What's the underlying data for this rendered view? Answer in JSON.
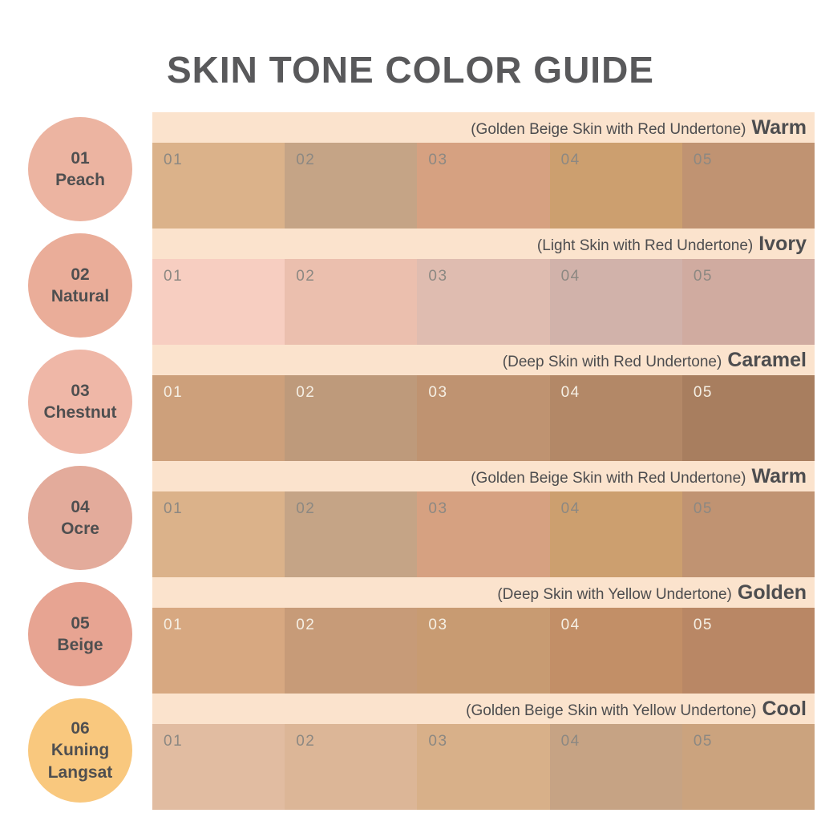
{
  "title": "SKIN TONE COLOR GUIDE",
  "colors": {
    "page_background": "#FFFFFF",
    "band_bg": "#FBE3CD",
    "title_text": "#59595B",
    "header_text": "#4D4D4F",
    "circle_text": "#4F4F50",
    "label_gray": "#8C8882",
    "label_light": "#F5EFE4"
  },
  "legend": {
    "items": [
      {
        "number": "01",
        "name": "Peach",
        "color": "#ECB4A1"
      },
      {
        "number": "02",
        "name": "Natural",
        "color": "#EAAD99"
      },
      {
        "number": "03",
        "name": "Chestnut",
        "color": "#EFB7A7"
      },
      {
        "number": "04",
        "name": "Ocre",
        "color": "#E3AB9B"
      },
      {
        "number": "05",
        "name": "Beige",
        "color": "#E7A492"
      },
      {
        "number": "06",
        "name": "Kuning Langsat",
        "color": "#F9C87E"
      }
    ]
  },
  "rows": [
    {
      "descriptor": "(Golden Beige Skin with Red Undertone)",
      "name": "Warm",
      "label_color": "#8C8882",
      "swatches": [
        {
          "label": "01",
          "color": "#DBB28A"
        },
        {
          "label": "02",
          "color": "#C5A486"
        },
        {
          "label": "03",
          "color": "#D6A181"
        },
        {
          "label": "04",
          "color": "#CC9F6F"
        },
        {
          "label": "05",
          "color": "#C09372"
        }
      ]
    },
    {
      "descriptor": "(Light Skin with Red Undertone)",
      "name": "Ivory",
      "label_color": "#8C8882",
      "swatches": [
        {
          "label": "01",
          "color": "#F7CEC1"
        },
        {
          "label": "02",
          "color": "#EBBFAE"
        },
        {
          "label": "03",
          "color": "#DFBCB0"
        },
        {
          "label": "04",
          "color": "#D1B2AA"
        },
        {
          "label": "05",
          "color": "#D0ABA0"
        }
      ]
    },
    {
      "descriptor": "(Deep Skin with Red Undertone)",
      "name": "Caramel",
      "label_color": "#F5EFE4",
      "swatches": [
        {
          "label": "01",
          "color": "#CDA07B"
        },
        {
          "label": "02",
          "color": "#BE9A7B"
        },
        {
          "label": "03",
          "color": "#BF9371"
        },
        {
          "label": "04",
          "color": "#B38867"
        },
        {
          "label": "05",
          "color": "#A87E5F"
        }
      ]
    },
    {
      "descriptor": "(Golden Beige Skin with Red Undertone)",
      "name": "Warm",
      "label_color": "#8C8882",
      "swatches": [
        {
          "label": "01",
          "color": "#DBB28A"
        },
        {
          "label": "02",
          "color": "#C5A486"
        },
        {
          "label": "03",
          "color": "#D6A181"
        },
        {
          "label": "04",
          "color": "#CC9F6F"
        },
        {
          "label": "05",
          "color": "#C09372"
        }
      ]
    },
    {
      "descriptor": "(Deep Skin with Yellow Undertone)",
      "name": "Golden",
      "label_color": "#F5EFE4",
      "swatches": [
        {
          "label": "01",
          "color": "#D7A881"
        },
        {
          "label": "02",
          "color": "#C79B78"
        },
        {
          "label": "03",
          "color": "#C89B72"
        },
        {
          "label": "04",
          "color": "#C28F67"
        },
        {
          "label": "05",
          "color": "#B98765"
        }
      ]
    },
    {
      "descriptor": "(Golden Beige Skin with Yellow Undertone)",
      "name": "Cool",
      "label_color": "#8C8882",
      "swatches": [
        {
          "label": "01",
          "color": "#E1BCA1"
        },
        {
          "label": "02",
          "color": "#DCB697"
        },
        {
          "label": "03",
          "color": "#D8B089"
        },
        {
          "label": "04",
          "color": "#C6A384"
        },
        {
          "label": "05",
          "color": "#CBA37E"
        }
      ]
    }
  ]
}
